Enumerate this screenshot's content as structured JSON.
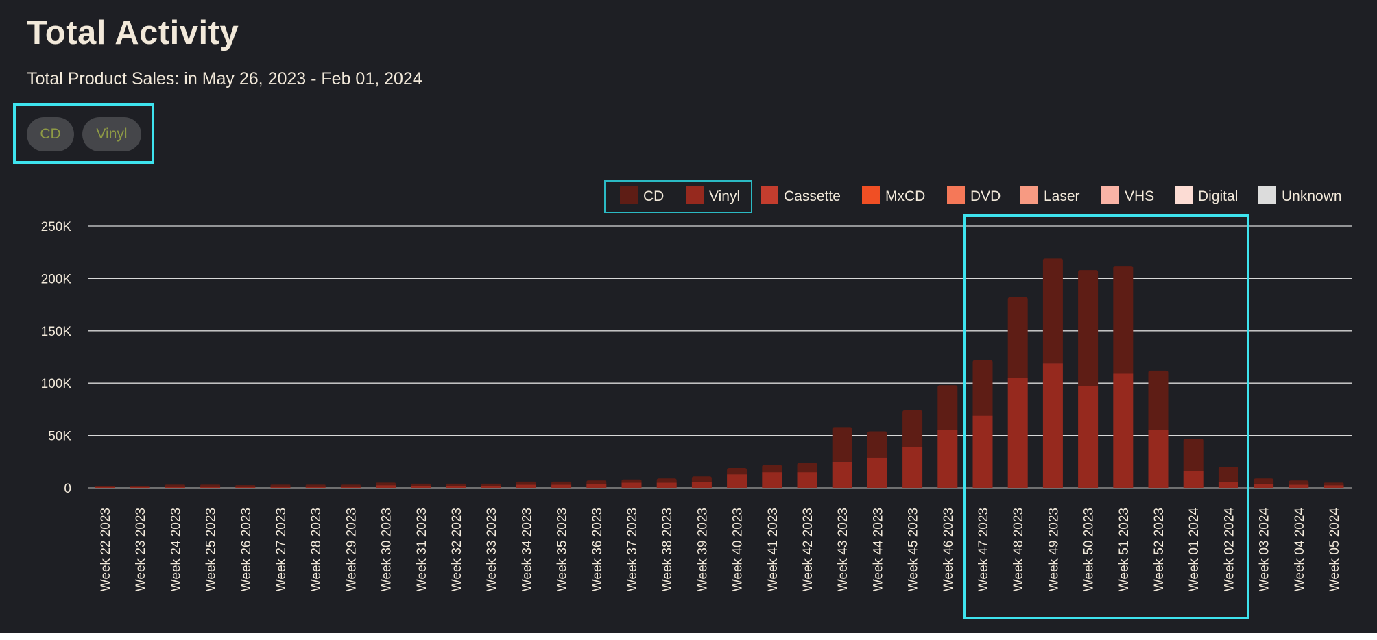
{
  "header": {
    "title": "Total Activity",
    "subtitle": "Total Product Sales: in May 26, 2023 - Feb 01, 2024"
  },
  "filters": {
    "chips": [
      "CD",
      "Vinyl"
    ]
  },
  "colors": {
    "background": "#1e1f24",
    "text": "#f2e9da",
    "highlight": "#3ee3ee",
    "chip_bg": "#45464a",
    "chip_text": "#8e9a45",
    "gridline": "#d9d9d9"
  },
  "chart_data": {
    "type": "bar",
    "stacked": true,
    "categories": [
      "Week 22 2023",
      "Week 23 2023",
      "Week 24 2023",
      "Week 25 2023",
      "Week 26 2023",
      "Week 27 2023",
      "Week 28 2023",
      "Week 29 2023",
      "Week 30 2023",
      "Week 31 2023",
      "Week 32 2023",
      "Week 33 2023",
      "Week 34 2023",
      "Week 35 2023",
      "Week 36 2023",
      "Week 37 2023",
      "Week 38 2023",
      "Week 39 2023",
      "Week 40 2023",
      "Week 41 2023",
      "Week 42 2023",
      "Week 43 2023",
      "Week 44 2023",
      "Week 45 2023",
      "Week 46 2023",
      "Week 47 2023",
      "Week 48 2023",
      "Week 49 2023",
      "Week 50 2023",
      "Week 51 2023",
      "Week 52 2023",
      "Week 01 2024",
      "Week 02 2024",
      "Week 03 2024",
      "Week 04 2024",
      "Week 05 2024"
    ],
    "series": [
      {
        "name": "Vinyl",
        "color": "#96291e",
        "values": [
          1000,
          1000,
          1500,
          1500,
          1000,
          1500,
          1500,
          1500,
          2500,
          2000,
          2000,
          2000,
          3000,
          3000,
          3500,
          5000,
          5000,
          6000,
          13000,
          15000,
          15000,
          25000,
          29000,
          39000,
          55000,
          69000,
          105000,
          119000,
          97000,
          109000,
          55000,
          16000,
          6000,
          4000,
          3000,
          2500
        ]
      },
      {
        "name": "CD",
        "color": "#5e1d15",
        "values": [
          1000,
          1000,
          1500,
          1500,
          1500,
          1500,
          1500,
          1500,
          2500,
          2000,
          2000,
          2000,
          3000,
          3000,
          3500,
          3000,
          4000,
          5000,
          6000,
          7000,
          9000,
          33000,
          25000,
          35000,
          43000,
          53000,
          77000,
          100000,
          111000,
          103000,
          57000,
          31000,
          14000,
          5000,
          4000,
          2500
        ]
      }
    ],
    "legend": [
      {
        "name": "CD",
        "color": "#5e1d15"
      },
      {
        "name": "Vinyl",
        "color": "#96291e"
      },
      {
        "name": "Cassette",
        "color": "#c33d2e"
      },
      {
        "name": "MxCD",
        "color": "#f04f24"
      },
      {
        "name": "DVD",
        "color": "#f57858"
      },
      {
        "name": "Laser",
        "color": "#f79a82"
      },
      {
        "name": "VHS",
        "color": "#fab4a6"
      },
      {
        "name": "Digital",
        "color": "#fcdcd4"
      },
      {
        "name": "Unknown",
        "color": "#dcdcdc"
      }
    ],
    "legend_position": "top-right",
    "y_ticks": [
      0,
      50000,
      100000,
      150000,
      200000,
      250000
    ],
    "y_tick_labels": [
      "0",
      "50K",
      "100K",
      "150K",
      "200K",
      "250K"
    ],
    "ylim": [
      0,
      250000
    ],
    "grid": true,
    "xlabel": "",
    "ylabel": ""
  }
}
